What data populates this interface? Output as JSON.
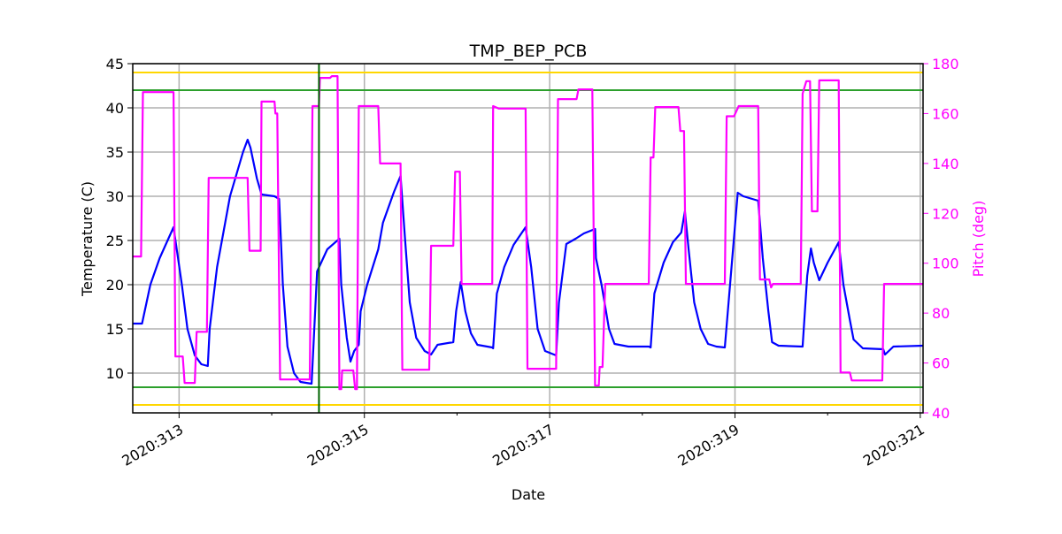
{
  "chart_data": {
    "type": "line",
    "title": "TMP_BEP_PCB",
    "xlabel": "Date",
    "ylabel": "Temperature (C)",
    "y2label": "Pitch (deg)",
    "xlim": [
      312.5,
      321.03
    ],
    "ylim": [
      5.5,
      45
    ],
    "y2lim": [
      40,
      180
    ],
    "grid": true,
    "x_ticks": [
      313,
      315,
      317,
      319,
      321
    ],
    "x_tick_labels": [
      "2020:313",
      "2020:315",
      "2020:317",
      "2020:319",
      "2020:321"
    ],
    "x_minor_ticks": [
      314,
      316,
      318,
      320
    ],
    "y_ticks": [
      10,
      15,
      20,
      25,
      30,
      35,
      40,
      45
    ],
    "y_tick_labels": [
      "10",
      "15",
      "20",
      "25",
      "30",
      "35",
      "40",
      "45"
    ],
    "y2_ticks": [
      40,
      60,
      80,
      100,
      120,
      140,
      160,
      180
    ],
    "y2_tick_labels": [
      "40",
      "60",
      "80",
      "100",
      "120",
      "140",
      "160",
      "180"
    ],
    "colors": {
      "temp": "#0000ff",
      "pitch": "#ff00ff",
      "yellow": "#ffd700",
      "green": "#2ca02c",
      "vline": "#006400",
      "grid": "#b0b0b0"
    },
    "hlines": [
      {
        "y": 44,
        "color": "#ffd700"
      },
      {
        "y": 6.4,
        "color": "#ffd700"
      },
      {
        "y": 42,
        "color": "#2ca02c"
      },
      {
        "y": 8.4,
        "color": "#2ca02c"
      }
    ],
    "vline": {
      "x": 314.51,
      "color": "#006400"
    },
    "series": [
      {
        "name": "Temperature",
        "axis": "left",
        "x": [
          312.5,
          312.6,
          312.69,
          312.79,
          312.94,
          313.03,
          313.09,
          313.17,
          313.24,
          313.31,
          313.33,
          313.41,
          313.55,
          313.69,
          313.74,
          313.77,
          313.84,
          313.89,
          314.03,
          314.08,
          314.12,
          314.17,
          314.24,
          314.31,
          314.43,
          314.49,
          314.6,
          314.73,
          314.75,
          314.81,
          314.85,
          314.89,
          314.94,
          314.96,
          315.03,
          315.15,
          315.2,
          315.32,
          315.39,
          315.44,
          315.49,
          315.56,
          315.65,
          315.72,
          315.79,
          315.96,
          315.99,
          316.04,
          316.09,
          316.15,
          316.22,
          316.38,
          316.39,
          316.43,
          316.51,
          316.61,
          316.74,
          316.8,
          316.87,
          316.95,
          317.07,
          317.1,
          317.18,
          317.28,
          317.37,
          317.49,
          317.5,
          317.56,
          317.64,
          317.7,
          317.85,
          318.07,
          318.09,
          318.13,
          318.23,
          318.33,
          318.42,
          318.46,
          318.5,
          318.56,
          318.63,
          318.71,
          318.8,
          318.89,
          319.03,
          319.09,
          319.25,
          319.3,
          319.36,
          319.4,
          319.47,
          319.73,
          319.78,
          319.82,
          319.85,
          319.91,
          320.0,
          320.12,
          320.17,
          320.24,
          320.28,
          320.38,
          320.6,
          320.62,
          320.71,
          321.03
        ],
        "y": [
          15.6,
          15.6,
          20,
          23,
          26.5,
          20,
          15,
          12,
          11,
          10.8,
          15,
          22,
          30,
          35,
          36.4,
          35.5,
          32,
          30.2,
          30,
          29.7,
          20,
          13,
          10,
          9,
          8.8,
          21.5,
          24,
          25.2,
          20,
          14,
          11.3,
          12.5,
          13.2,
          17,
          20,
          24,
          27,
          30.5,
          32.3,
          25,
          18,
          14,
          12.5,
          12.1,
          13.2,
          13.5,
          17,
          20.3,
          17,
          14.5,
          13.2,
          12.9,
          12.8,
          19,
          22,
          24.5,
          26.5,
          22,
          15,
          12.5,
          12,
          18,
          24.6,
          25.2,
          25.8,
          26.3,
          23,
          20,
          15,
          13.3,
          13,
          13,
          12.9,
          19,
          22.5,
          24.8,
          25.9,
          28.3,
          24,
          18,
          15,
          13.3,
          13,
          12.9,
          30.4,
          30,
          29.5,
          23,
          17,
          13.5,
          13.1,
          13,
          21,
          24.1,
          22.5,
          20.5,
          22.5,
          24.8,
          20,
          16,
          13.8,
          12.8,
          12.7,
          12.1,
          13,
          13.1
        ]
      },
      {
        "name": "Pitch",
        "axis": "right",
        "x": [
          312.5,
          312.59,
          312.61,
          312.94,
          312.96,
          313.04,
          313.06,
          313.17,
          313.19,
          313.3,
          313.32,
          313.74,
          313.76,
          313.88,
          313.89,
          314.03,
          314.04,
          314.06,
          314.09,
          314.41,
          314.44,
          314.51,
          314.52,
          314.63,
          314.65,
          314.71,
          314.73,
          314.75,
          314.76,
          314.88,
          314.9,
          314.92,
          314.94,
          315.15,
          315.17,
          315.39,
          315.41,
          315.7,
          315.72,
          315.96,
          315.98,
          316.03,
          316.05,
          316.38,
          316.39,
          316.45,
          316.74,
          316.76,
          317.07,
          317.09,
          317.29,
          317.31,
          317.46,
          317.49,
          317.53,
          317.54,
          317.57,
          317.6,
          318.07,
          318.09,
          318.12,
          318.14,
          318.39,
          318.41,
          318.45,
          318.47,
          318.89,
          318.91,
          318.99,
          319.04,
          319.25,
          319.27,
          319.37,
          319.39,
          319.41,
          319.71,
          319.73,
          319.77,
          319.81,
          319.83,
          319.89,
          319.91,
          320.12,
          320.14,
          320.24,
          320.26,
          320.59,
          320.61,
          321.03
        ],
        "y": [
          102.7,
          102.7,
          168.6,
          168.6,
          62.6,
          62.6,
          52,
          52,
          72.5,
          72.5,
          134.2,
          134.2,
          105,
          105,
          164.8,
          164.8,
          160,
          160,
          53.4,
          53.4,
          163,
          163,
          174.3,
          174.3,
          175,
          175,
          49.5,
          49.5,
          57,
          57,
          49.5,
          49.5,
          163,
          163,
          140,
          140,
          57.3,
          57.3,
          107,
          107,
          136.7,
          136.7,
          91.7,
          91.7,
          163,
          162,
          162,
          57.7,
          57.7,
          165.8,
          165.8,
          169.7,
          169.7,
          50.9,
          50.9,
          58.4,
          58.4,
          91.7,
          91.7,
          142.4,
          142.4,
          162.6,
          162.6,
          153,
          153,
          91.7,
          91.7,
          158.9,
          158.9,
          163,
          163,
          93.5,
          93.5,
          90.3,
          91.7,
          91.7,
          168,
          173,
          173,
          120.8,
          120.8,
          173.3,
          173.3,
          56.2,
          56.2,
          53,
          53,
          91.7,
          91.7
        ]
      }
    ]
  }
}
